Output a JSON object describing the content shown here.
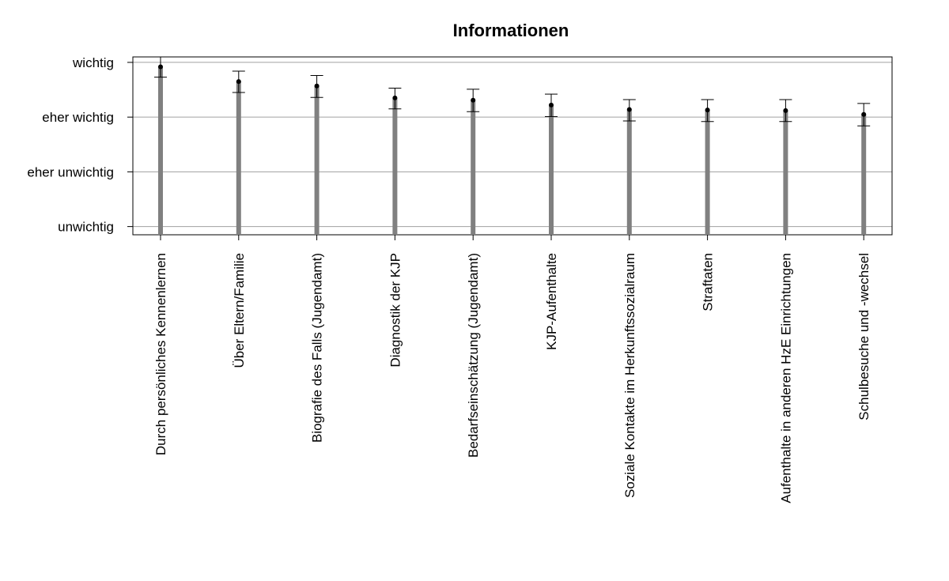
{
  "chart_data": {
    "type": "bar",
    "title": "Informationen",
    "xlabel": "",
    "ylabel": "",
    "y_tick_values": [
      1,
      2,
      3,
      4
    ],
    "y_tick_labels": [
      "unwichtig",
      "eher unwichtig",
      "eher wichtig",
      "wichtig"
    ],
    "ylim": [
      0.85,
      4.1
    ],
    "grid": true,
    "categories": [
      "Durch persönliches Kennenlernen",
      "Über Eltern/Familie",
      "Biografie des Falls (Jugendamt)",
      "Diagnostik der KJP",
      "Bedarfseinschätzung (Jugendamt)",
      "KJP-Aufenthalte",
      "Soziale Kontakte im Herkunftssozialraum",
      "Straftaten",
      "Aufenthalte in anderen HzE Einrichtungen",
      "Schulbesuche und -wechsel"
    ],
    "values": [
      3.92,
      3.65,
      3.57,
      3.35,
      3.31,
      3.22,
      3.14,
      3.13,
      3.12,
      3.05
    ],
    "error_low": [
      3.73,
      3.45,
      3.36,
      3.15,
      3.1,
      3.01,
      2.93,
      2.92,
      2.92,
      2.84
    ],
    "error_high": [
      4.1,
      3.84,
      3.76,
      3.53,
      3.51,
      3.42,
      3.32,
      3.32,
      3.32,
      3.25
    ],
    "colors": {
      "bar": "#808080",
      "point": "#000000",
      "errorbar": "#000000",
      "grid": "#a0a0a0",
      "frame": "#000000"
    }
  }
}
